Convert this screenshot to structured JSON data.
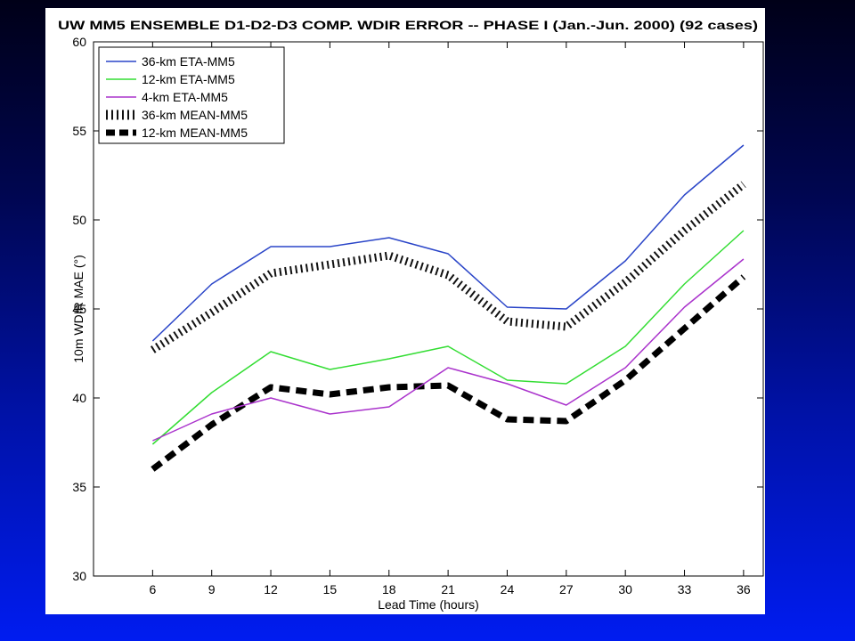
{
  "chart_data": {
    "type": "line",
    "title": "UW MM5 ENSEMBLE D1-D2-D3 COMP. WDIR ERROR -- PHASE I (Jan.-Jun. 2000) (92 cases)",
    "xlabel": "Lead Time (hours)",
    "ylabel": "10m WDIR MAE (°)",
    "x": [
      6,
      9,
      12,
      15,
      18,
      21,
      24,
      27,
      30,
      33,
      36
    ],
    "xlim": [
      3,
      37
    ],
    "ylim": [
      30,
      60
    ],
    "yticks": [
      30,
      35,
      40,
      45,
      50,
      55,
      60
    ],
    "grid": false,
    "legend_position": "top-left",
    "series": [
      {
        "name": "36-km ETA-MM5",
        "color": "#2a45c8",
        "style": "solid",
        "values": [
          43.2,
          46.4,
          48.5,
          48.5,
          49.0,
          48.1,
          45.1,
          45.0,
          47.7,
          51.4,
          54.2
        ]
      },
      {
        "name": "12-km ETA-MM5",
        "color": "#33dd33",
        "style": "solid",
        "values": [
          37.4,
          40.3,
          42.6,
          41.6,
          42.2,
          42.9,
          41.0,
          40.8,
          42.9,
          46.4,
          49.4
        ]
      },
      {
        "name": "4-km ETA-MM5",
        "color": "#aa33cc",
        "style": "solid",
        "values": [
          37.6,
          39.1,
          40.0,
          39.1,
          39.5,
          41.7,
          40.8,
          39.6,
          41.7,
          45.1,
          47.8
        ]
      },
      {
        "name": "36-km MEAN-MM5",
        "color": "#111111",
        "style": "hatched",
        "values": [
          42.7,
          44.8,
          47.0,
          47.5,
          48.0,
          46.9,
          44.3,
          44.0,
          46.5,
          49.4,
          52.0
        ]
      },
      {
        "name": "12-km MEAN-MM5",
        "color": "#000000",
        "style": "dashed",
        "values": [
          36.0,
          38.5,
          40.6,
          40.2,
          40.6,
          40.7,
          38.8,
          38.7,
          41.0,
          43.9,
          46.8
        ]
      }
    ]
  }
}
